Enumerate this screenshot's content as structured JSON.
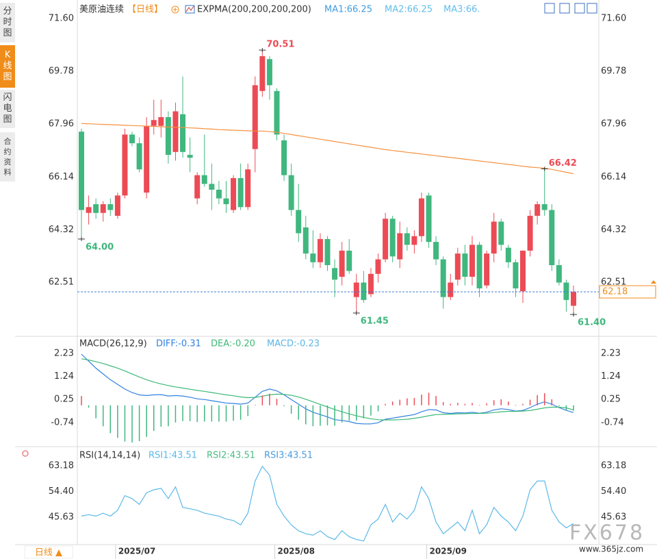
{
  "ui": {
    "sidebar": [
      "分时图",
      "K线图",
      "闪电图",
      "合约资料"
    ],
    "period_button": "日线 ▲",
    "watermark": "FX678",
    "watermark_url": "www.365jz.com"
  },
  "chart_data": [
    {
      "type": "candlestick",
      "title": "美原油连续",
      "period": "【日线】",
      "indicator": "EXPMA(200,200,200,200)",
      "legend": [
        {
          "name": "MA1:66.25",
          "color": "#3f9be0"
        },
        {
          "name": "MA2:66.25",
          "color": "#62bde8"
        },
        {
          "name": "MA3:66.",
          "color": "#62bde8"
        }
      ],
      "categories": [
        null,
        null,
        null,
        null,
        null,
        "2025/07",
        null,
        null,
        null,
        null,
        null,
        null,
        null,
        null,
        null,
        null,
        null,
        null,
        null,
        null,
        null,
        null,
        null,
        null,
        null,
        null,
        null,
        "2025/08",
        null,
        null,
        null,
        null,
        null,
        null,
        null,
        null,
        null,
        null,
        null,
        null,
        null,
        null,
        null,
        null,
        null,
        null,
        null,
        null,
        "2025/09",
        null,
        null,
        null,
        null,
        null,
        null,
        null,
        null,
        null,
        null,
        null,
        null,
        null,
        null,
        null,
        null,
        null,
        null,
        null,
        null
      ],
      "open": [
        67.7,
        64.9,
        65.2,
        64.9,
        65.2,
        64.8,
        65.5,
        67.6,
        67.3,
        65.6,
        67.9,
        67.9,
        68.2,
        67.0,
        68.3,
        66.9,
        65.4,
        66.2,
        65.9,
        65.7,
        65.4,
        65.0,
        66.1,
        65.1,
        67.1,
        69.1,
        70.2,
        69.1,
        67.4,
        66.2,
        65.0,
        64.4,
        63.5,
        63.2,
        64.0,
        63.0,
        62.7,
        63.6,
        62.0,
        62.5,
        62.1,
        62.8,
        63.3,
        64.7,
        63.3,
        64.2,
        63.8,
        64.1,
        65.5,
        63.9,
        63.3,
        62.0,
        62.6,
        63.5,
        62.7,
        63.8,
        62.4,
        63.5,
        64.6,
        63.7,
        63.2,
        62.2,
        63.6,
        64.8,
        65.2,
        65.0,
        63.1,
        62.5,
        61.7
      ],
      "high": [
        67.8,
        65.5,
        65.4,
        65.3,
        65.4,
        65.6,
        67.8,
        67.7,
        67.5,
        68.2,
        68.8,
        68.8,
        68.4,
        68.7,
        69.6,
        67.5,
        66.3,
        67.6,
        66.6,
        66.0,
        66.0,
        66.2,
        66.6,
        66.6,
        69.6,
        70.51,
        70.3,
        69.2,
        67.6,
        66.6,
        65.9,
        64.8,
        64.3,
        64.2,
        64.1,
        63.3,
        63.9,
        64.0,
        62.8,
        62.9,
        63.0,
        63.5,
        64.9,
        64.8,
        64.6,
        64.4,
        64.3,
        65.6,
        65.6,
        64.1,
        63.4,
        62.8,
        63.7,
        63.8,
        64.1,
        63.9,
        63.6,
        64.9,
        64.7,
        63.8,
        63.3,
        63.6,
        65.0,
        65.3,
        66.42,
        65.2,
        63.3,
        62.6,
        62.4
      ],
      "low": [
        64.0,
        64.5,
        64.7,
        64.6,
        64.8,
        64.7,
        65.4,
        67.2,
        66.3,
        65.4,
        67.6,
        67.5,
        66.6,
        66.7,
        66.8,
        66.3,
        65.2,
        65.8,
        65.0,
        65.2,
        64.9,
        64.9,
        65.0,
        65.0,
        66.3,
        68.9,
        68.8,
        67.4,
        66.0,
        64.8,
        63.9,
        63.3,
        63.0,
        63.0,
        62.9,
        62.0,
        62.4,
        62.8,
        61.45,
        61.8,
        62.0,
        62.5,
        63.2,
        63.2,
        63.0,
        63.6,
        63.5,
        63.9,
        63.7,
        63.1,
        61.6,
        61.9,
        62.4,
        62.4,
        62.4,
        62.0,
        62.3,
        63.2,
        63.6,
        63.0,
        62.0,
        61.8,
        63.4,
        64.5,
        64.8,
        62.9,
        62.4,
        61.5,
        61.4
      ],
      "close": [
        65.0,
        65.1,
        64.9,
        65.2,
        65.0,
        65.5,
        67.6,
        67.3,
        66.4,
        67.9,
        68.1,
        68.2,
        66.9,
        68.4,
        67.0,
        66.8,
        66.2,
        65.9,
        65.7,
        65.4,
        65.2,
        66.1,
        65.1,
        66.4,
        69.3,
        70.3,
        69.3,
        67.6,
        66.2,
        65.0,
        64.2,
        63.5,
        63.2,
        64.0,
        63.1,
        62.6,
        63.6,
        62.9,
        62.5,
        61.9,
        62.8,
        63.3,
        64.7,
        63.4,
        64.2,
        63.8,
        64.1,
        65.4,
        63.9,
        63.3,
        62.0,
        62.5,
        63.5,
        62.7,
        63.8,
        62.3,
        63.5,
        64.6,
        63.8,
        63.2,
        62.3,
        63.6,
        64.8,
        65.2,
        65.0,
        63.1,
        62.5,
        61.9,
        62.18
      ],
      "up_color": "#ec4b55",
      "down_color": "#3fb77e",
      "lines": [
        {
          "color": "#f5913f",
          "values": [
            67.98,
            67.97,
            67.96,
            67.95,
            67.94,
            67.93,
            67.92,
            67.91,
            67.9,
            67.89,
            67.88,
            67.87,
            67.86,
            67.85,
            67.84,
            67.83,
            67.82,
            67.8,
            67.79,
            67.77,
            67.76,
            67.75,
            67.74,
            67.73,
            67.72,
            67.72,
            67.7,
            67.68,
            67.64,
            67.6,
            67.56,
            67.52,
            67.48,
            67.44,
            67.4,
            67.36,
            67.32,
            67.28,
            67.24,
            67.2,
            67.16,
            67.12,
            67.08,
            67.05,
            67.02,
            66.99,
            66.96,
            66.93,
            66.9,
            66.87,
            66.84,
            66.81,
            66.78,
            66.75,
            66.72,
            66.69,
            66.66,
            66.63,
            66.6,
            66.57,
            66.54,
            66.51,
            66.48,
            66.46,
            66.44,
            66.4,
            66.35,
            66.3,
            66.25
          ]
        }
      ],
      "ylim": [
        60.67,
        72.0
      ],
      "yticks": [
        {
          "value": 71.6,
          "label": "71.60"
        },
        69.78,
        67.96,
        66.14,
        64.32,
        62.51
      ],
      "last_price": 62.18,
      "last_price_color": "#f08c1a",
      "last_price_line_color": "#3a7bd5",
      "annotations": [
        {
          "value": 64.0,
          "label": "64.00",
          "kind": "low"
        },
        {
          "value": 70.51,
          "label": "70.51",
          "kind": "high"
        },
        {
          "value": 61.45,
          "label": "61.45",
          "kind": "low"
        },
        {
          "value": 66.42,
          "label": "66.42",
          "kind": "high"
        },
        {
          "value": 61.4,
          "label": "61.40",
          "kind": "low"
        }
      ],
      "grid": false
    },
    {
      "type": "macd",
      "title": "MACD(26,12,9)",
      "series": [
        {
          "name": "DIFF:-0.31",
          "color": "#2f80e0",
          "values": [
            2.2,
            1.9,
            1.6,
            1.35,
            1.1,
            0.9,
            0.7,
            0.55,
            0.45,
            0.42,
            0.45,
            0.46,
            0.4,
            0.42,
            0.4,
            0.35,
            0.28,
            0.25,
            0.2,
            0.15,
            0.1,
            0.08,
            0.05,
            0.1,
            0.35,
            0.6,
            0.7,
            0.62,
            0.45,
            0.25,
            0.05,
            -0.15,
            -0.3,
            -0.4,
            -0.5,
            -0.62,
            -0.65,
            -0.7,
            -0.78,
            -0.8,
            -0.8,
            -0.75,
            -0.6,
            -0.55,
            -0.5,
            -0.45,
            -0.4,
            -0.28,
            -0.18,
            -0.2,
            -0.32,
            -0.35,
            -0.32,
            -0.33,
            -0.3,
            -0.34,
            -0.3,
            -0.2,
            -0.15,
            -0.18,
            -0.25,
            -0.22,
            -0.1,
            0.05,
            0.15,
            0.05,
            -0.1,
            -0.22,
            -0.31
          ]
        },
        {
          "name": "DEA:-0.20",
          "color": "#3cb878",
          "values": [
            2.0,
            1.95,
            1.88,
            1.8,
            1.7,
            1.6,
            1.48,
            1.35,
            1.22,
            1.1,
            1.0,
            0.92,
            0.85,
            0.79,
            0.74,
            0.69,
            0.64,
            0.6,
            0.55,
            0.5,
            0.45,
            0.41,
            0.36,
            0.33,
            0.34,
            0.39,
            0.45,
            0.48,
            0.47,
            0.43,
            0.36,
            0.26,
            0.15,
            0.04,
            -0.07,
            -0.18,
            -0.28,
            -0.37,
            -0.45,
            -0.52,
            -0.58,
            -0.62,
            -0.63,
            -0.63,
            -0.62,
            -0.6,
            -0.56,
            -0.51,
            -0.45,
            -0.4,
            -0.39,
            -0.38,
            -0.37,
            -0.36,
            -0.35,
            -0.35,
            -0.34,
            -0.31,
            -0.28,
            -0.26,
            -0.26,
            -0.25,
            -0.22,
            -0.17,
            -0.11,
            -0.08,
            -0.08,
            -0.11,
            -0.2
          ]
        },
        {
          "name": "MACD:-0.23",
          "type": "bar",
          "color": "#5ab4e5",
          "up_color": "#ec4b55",
          "down_color": "#3fb77e",
          "values": [
            0.4,
            -0.1,
            -0.56,
            -0.9,
            -1.2,
            -1.4,
            -1.56,
            -1.6,
            -1.54,
            -1.36,
            -1.1,
            -0.92,
            -0.9,
            -0.74,
            -0.68,
            -0.68,
            -0.72,
            -0.7,
            -0.7,
            -0.7,
            -0.7,
            -0.66,
            -0.62,
            -0.46,
            0.02,
            0.42,
            0.5,
            0.28,
            -0.04,
            -0.36,
            -0.62,
            -0.82,
            -0.9,
            -0.88,
            -0.86,
            -0.88,
            -0.74,
            -0.66,
            -0.66,
            -0.56,
            -0.44,
            -0.26,
            0.06,
            0.16,
            0.24,
            0.3,
            0.32,
            0.46,
            0.54,
            0.4,
            0.14,
            0.06,
            0.1,
            0.06,
            0.1,
            0.02,
            0.08,
            0.22,
            0.26,
            0.16,
            0.02,
            0.06,
            0.24,
            0.44,
            0.52,
            0.26,
            -0.04,
            -0.22,
            -0.23
          ]
        }
      ],
      "ylim": [
        -1.72,
        2.79
      ],
      "yticks": [
        2.23,
        1.24,
        0.25,
        -0.74
      ]
    },
    {
      "type": "line",
      "title": "RSI(14,14,14)",
      "legend": [
        {
          "name": "RSI1:43.51",
          "color": "#5bb8e8"
        },
        {
          "name": "RSI2:43.51",
          "color": "#4cbb85"
        },
        {
          "name": "RSI3:43.51",
          "color": "#4a9be0"
        }
      ],
      "series": [
        {
          "color": "#5bb8e8",
          "values": [
            46,
            46.5,
            46,
            47,
            46,
            48,
            53,
            52,
            50,
            54,
            55,
            55.5,
            52,
            56,
            49,
            48.5,
            48,
            47,
            46.5,
            46,
            45,
            44.5,
            43,
            47,
            58,
            63,
            60,
            50,
            46,
            43,
            41,
            40,
            39.5,
            41,
            39,
            38,
            41,
            39,
            38,
            37.5,
            43,
            45,
            50,
            44,
            47,
            45,
            48,
            56,
            52,
            44,
            40,
            42,
            44,
            41,
            48,
            40,
            43,
            49,
            46,
            44,
            41,
            46,
            55,
            58,
            58,
            48,
            44,
            42,
            43.51
          ]
        }
      ],
      "ylim": [
        36.27,
        69.03
      ],
      "yticks": [
        63.18,
        {
          "value": 54.4,
          "label": "54.40"
        },
        45.63
      ]
    }
  ]
}
